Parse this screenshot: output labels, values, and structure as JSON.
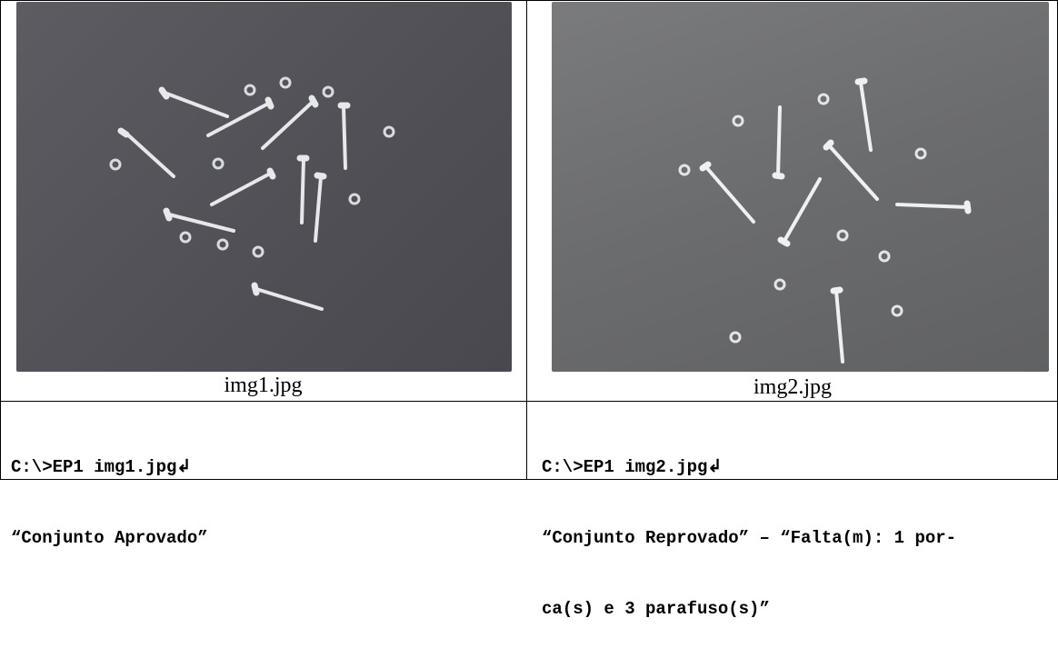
{
  "left": {
    "caption": "img1.jpg",
    "cmd_line": "C:\\>EP1 img1.jpg↲",
    "result_lines": [
      "“Conjunto Aprovado”"
    ],
    "photo_bg": "#54545a"
  },
  "right": {
    "caption": "img2.jpg",
    "cmd_line": "C:\\>EP1 img2.jpg↲",
    "result_lines": [
      "“Conjunto Reprovado” – “Falta(m): 1 por-",
      "ca(s) e 3 parafuso(s)”"
    ],
    "photo_bg": "#6a6b6d"
  }
}
